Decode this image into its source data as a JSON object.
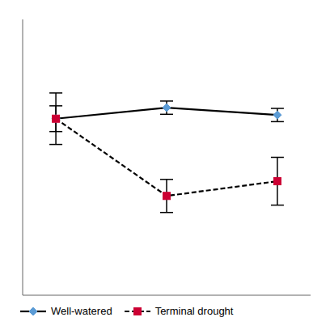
{
  "chart_data": {
    "type": "line",
    "x": [
      1,
      2,
      3
    ],
    "xlim": [
      0.7,
      3.3
    ],
    "ylim": [
      0.4,
      1.15
    ],
    "tick_labels": false,
    "grid": false,
    "legend": "lower left",
    "color": "#000000",
    "series": [
      {
        "name": "Well-watered",
        "color": "#5B9BD5",
        "marker": "diamond",
        "line_style": "solid",
        "values": [
          0.88,
          0.91,
          0.89
        ],
        "errors": [
          0.035,
          0.018,
          0.018
        ]
      },
      {
        "name": "Terminal drought",
        "color": "#CC0033",
        "marker": "square",
        "line_style": "dashed",
        "values": [
          0.88,
          0.67,
          0.71
        ],
        "errors": [
          0.07,
          0.045,
          0.065
        ]
      }
    ]
  }
}
